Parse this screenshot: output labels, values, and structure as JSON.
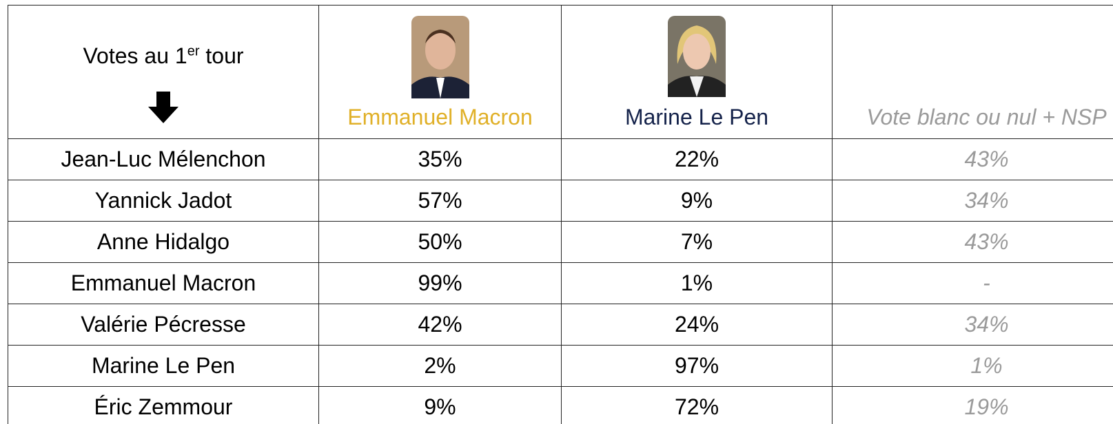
{
  "table": {
    "corner": {
      "text": "Votes au 1",
      "sup": "er",
      "after": " tour"
    },
    "columns": [
      "Emmanuel Macron",
      "Marine Le Pen",
      "Vote blanc ou nul + NSP"
    ],
    "rows": [
      [
        "Jean-Luc Mélenchon",
        "35%",
        "22%",
        "43%"
      ],
      [
        "Yannick Jadot",
        "57%",
        "9%",
        "34%"
      ],
      [
        "Anne Hidalgo",
        "50%",
        "7%",
        "43%"
      ],
      [
        "Emmanuel Macron",
        "99%",
        "1%",
        "-"
      ],
      [
        "Valérie Pécresse",
        "42%",
        "24%",
        "34%"
      ],
      [
        "Marine Le Pen",
        "2%",
        "97%",
        "1%"
      ],
      [
        "Éric Zemmour",
        "9%",
        "72%",
        "19%"
      ]
    ]
  }
}
